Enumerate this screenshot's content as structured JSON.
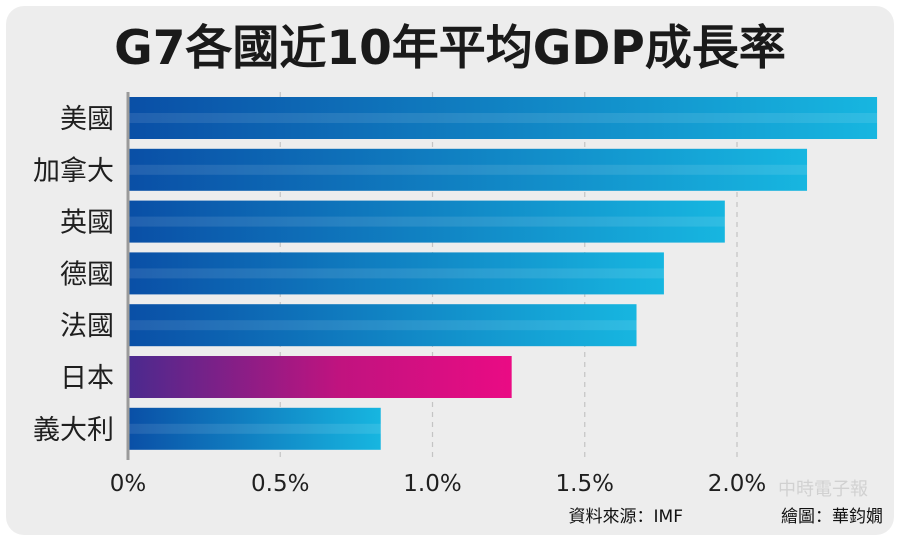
{
  "chart_data": {
    "type": "bar",
    "orientation": "horizontal",
    "title": "G7各國近10年平均GDP成長率",
    "categories": [
      "美國",
      "加拿大",
      "英國",
      "德國",
      "法國",
      "日本",
      "義大利"
    ],
    "values": [
      2.46,
      2.23,
      1.96,
      1.76,
      1.67,
      1.26,
      0.83
    ],
    "highlight_category": "日本",
    "xlim": [
      0,
      2.5
    ],
    "xticks": [
      0,
      0.5,
      1.0,
      1.5,
      2.0
    ],
    "xtick_labels": [
      "0%",
      "0.5%",
      "1.0%",
      "1.5%",
      "2.0%"
    ],
    "grid": true,
    "source": "資料來源：IMF",
    "credit": "繪圖：華鈞嫺"
  },
  "watermark": "中時電子報",
  "colors": {
    "bar_light": "#17b6e0",
    "bar_dark": "#0a4fa6",
    "highlight_light": "#ea0b84",
    "highlight_dark": "#4a2a8e",
    "axis": "#9a9a9a",
    "grid": "#c4c4c4"
  }
}
